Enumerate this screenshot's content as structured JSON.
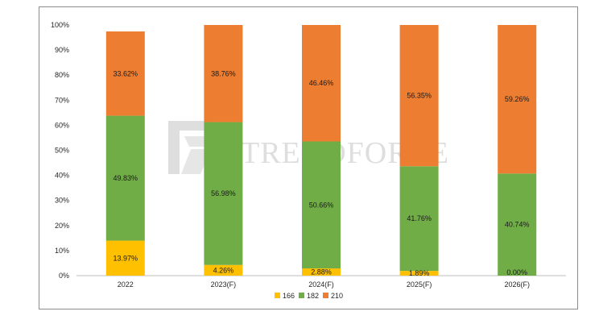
{
  "chart_data": {
    "type": "bar",
    "stacked": true,
    "categories": [
      "2022",
      "2023(F)",
      "2024(F)",
      "2025(F)",
      "2026(F)"
    ],
    "series": [
      {
        "name": "166",
        "color": "#FFC000",
        "values": [
          13.97,
          4.26,
          2.88,
          1.89,
          0.0
        ],
        "labels": [
          "13.97%",
          "4.26%",
          "2.88%",
          "1.89%",
          "0.00%"
        ]
      },
      {
        "name": "182",
        "color": "#70AD47",
        "values": [
          49.83,
          56.98,
          50.66,
          41.76,
          40.74
        ],
        "labels": [
          "49.83%",
          "56.98%",
          "50.66%",
          "41.76%",
          "40.74%"
        ]
      },
      {
        "name": "210",
        "color": "#ED7D31",
        "values": [
          33.62,
          38.76,
          46.46,
          56.35,
          59.26
        ],
        "labels": [
          "33.62%",
          "38.76%",
          "46.46%",
          "56.35%",
          "59.26%"
        ]
      }
    ],
    "ylim": [
      0,
      100
    ],
    "yticks": [
      "0%",
      "10%",
      "20%",
      "30%",
      "40%",
      "50%",
      "60%",
      "70%",
      "80%",
      "90%",
      "100%"
    ],
    "grid": false,
    "legend": "bottom-center"
  },
  "watermark": {
    "text": "TRENDFORCE"
  }
}
